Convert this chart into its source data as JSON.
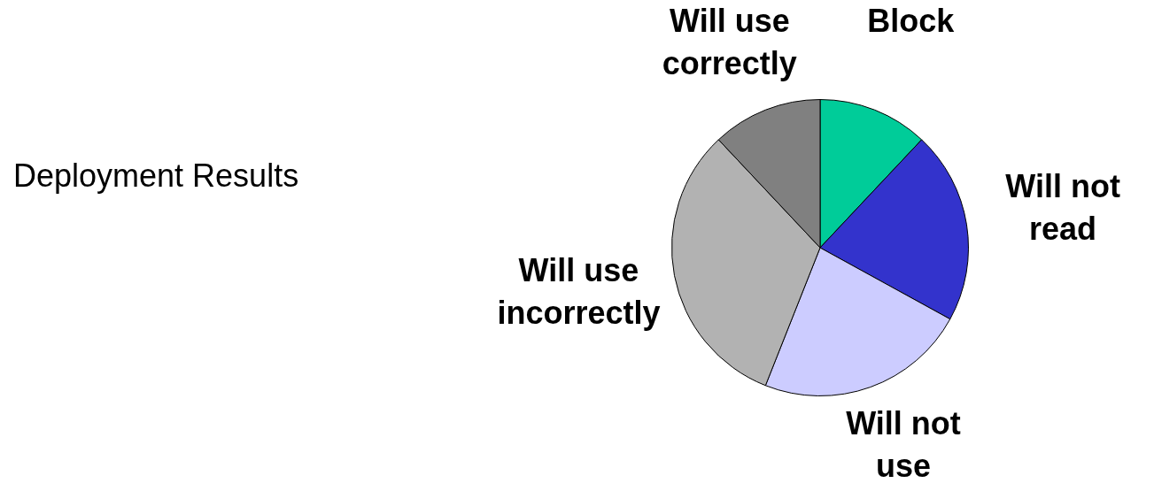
{
  "chart_data": {
    "type": "pie",
    "title": "Deployment Results",
    "categories": [
      "Block",
      "Will not read",
      "Will not use",
      "Will use incorrectly",
      "Will use correctly"
    ],
    "values": [
      12,
      21,
      23,
      32,
      12
    ],
    "colors": [
      "#00cc99",
      "#3333cc",
      "#ccccff",
      "#b2b2b2",
      "#808080"
    ],
    "legend": false
  }
}
